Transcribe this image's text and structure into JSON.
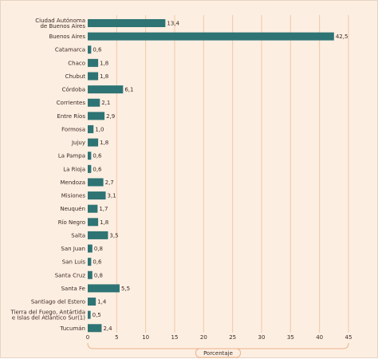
{
  "chart_data": {
    "type": "bar",
    "orientation": "horizontal",
    "categories": [
      [
        "Ciudad Autónoma",
        "de Buenos Aires"
      ],
      [
        "Buenos Aires"
      ],
      [
        "Catamarca"
      ],
      [
        "Chaco"
      ],
      [
        "Chubut"
      ],
      [
        "Córdoba"
      ],
      [
        "Corrientes"
      ],
      [
        "Entre Ríos"
      ],
      [
        "Formosa"
      ],
      [
        "Jujuy"
      ],
      [
        "La Pampa"
      ],
      [
        "La Rioja"
      ],
      [
        "Mendoza"
      ],
      [
        "Misiones"
      ],
      [
        "Neuquén"
      ],
      [
        "Río Negro"
      ],
      [
        "Salta"
      ],
      [
        "San Juan"
      ],
      [
        "San Luis"
      ],
      [
        "Santa Cruz"
      ],
      [
        "Santa Fe"
      ],
      [
        "Santiago del Estero"
      ],
      [
        "Tierra del Fuego, Antártida",
        "e Islas del Atlántico Sur(1)"
      ],
      [
        "Tucumán"
      ]
    ],
    "values": [
      13.4,
      42.5,
      0.6,
      1.8,
      1.8,
      6.1,
      2.1,
      2.9,
      1.0,
      1.8,
      0.6,
      0.6,
      2.7,
      3.1,
      1.7,
      1.8,
      3.5,
      0.8,
      0.6,
      0.8,
      5.5,
      1.4,
      0.5,
      2.4
    ],
    "value_labels": [
      "13,4",
      "42,5",
      "0,6",
      "1,8",
      "1,8",
      "6,1",
      "2,1",
      "2,9",
      "1,0",
      "1,8",
      "0,6",
      "0,6",
      "2,7",
      "3,1",
      "1,7",
      "1,8",
      "3,5",
      "0,8",
      "0,6",
      "0,8",
      "5,5",
      "1,4",
      "0,5",
      "2,4"
    ],
    "xticks": [
      0,
      5,
      10,
      15,
      20,
      25,
      30,
      35,
      40,
      45
    ],
    "xlim": [
      0,
      45
    ],
    "xlabel": "Porcentaje",
    "title": "",
    "grid": "vertical",
    "colors": {
      "bar": "#2e7474",
      "grid": "#efc9a5",
      "background": "#fdeee2",
      "axis_box": "#eab48a"
    }
  }
}
